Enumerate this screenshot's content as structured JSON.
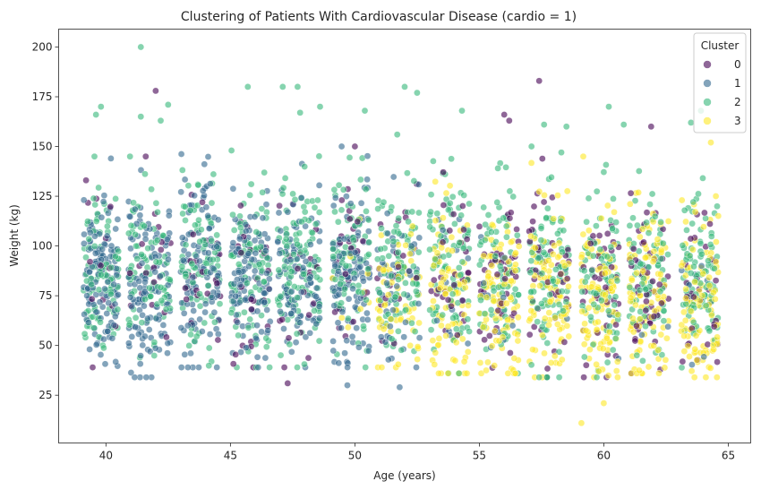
{
  "chart_data": {
    "type": "scatter",
    "title": "Clustering of Patients With Cardiovascular Disease (cardio = 1)",
    "xlabel": "Age (years)",
    "ylabel": "Weight (kg)",
    "xlim": [
      38.1,
      65.9
    ],
    "ylim": [
      1,
      209
    ],
    "x_ticks": [
      40,
      45,
      50,
      55,
      60,
      65
    ],
    "y_ticks": [
      25,
      50,
      75,
      100,
      125,
      150,
      175,
      200
    ],
    "grid": false,
    "legend": {
      "title": "Cluster",
      "placement": "top-right",
      "entries": [
        {
          "label": "0",
          "color": "#440154"
        },
        {
          "label": "1",
          "color": "#31688e"
        },
        {
          "label": "2",
          "color": "#35b779"
        },
        {
          "label": "3",
          "color": "#fde725"
        }
      ]
    },
    "point_opacity": 0.6,
    "bands": [
      {
        "x_range": [
          39.1,
          40.5
        ],
        "y_range": [
          45,
          135
        ],
        "mix": [
          0.05,
          0.55,
          0.4,
          0.0
        ]
      },
      {
        "x_range": [
          40.9,
          42.6
        ],
        "y_range": [
          40,
          135
        ],
        "mix": [
          0.08,
          0.55,
          0.37,
          0.0
        ]
      },
      {
        "x_range": [
          43.0,
          44.6
        ],
        "y_range": [
          45,
          140
        ],
        "mix": [
          0.1,
          0.5,
          0.4,
          0.0
        ]
      },
      {
        "x_range": [
          45.0,
          46.6
        ],
        "y_range": [
          45,
          138
        ],
        "mix": [
          0.1,
          0.45,
          0.45,
          0.0
        ]
      },
      {
        "x_range": [
          46.9,
          48.6
        ],
        "y_range": [
          45,
          138
        ],
        "mix": [
          0.12,
          0.45,
          0.43,
          0.0
        ]
      },
      {
        "x_range": [
          49.1,
          50.6
        ],
        "y_range": [
          45,
          140
        ],
        "mix": [
          0.12,
          0.5,
          0.35,
          0.03
        ]
      },
      {
        "x_range": [
          50.9,
          52.6
        ],
        "y_range": [
          45,
          135
        ],
        "mix": [
          0.12,
          0.2,
          0.4,
          0.28
        ]
      },
      {
        "x_range": [
          53.0,
          54.6
        ],
        "y_range": [
          42,
          140
        ],
        "mix": [
          0.15,
          0.05,
          0.4,
          0.4
        ]
      },
      {
        "x_range": [
          55.0,
          56.6
        ],
        "y_range": [
          42,
          140
        ],
        "mix": [
          0.15,
          0.03,
          0.4,
          0.42
        ]
      },
      {
        "x_range": [
          57.0,
          58.6
        ],
        "y_range": [
          40,
          140
        ],
        "mix": [
          0.18,
          0.02,
          0.38,
          0.42
        ]
      },
      {
        "x_range": [
          59.1,
          60.6
        ],
        "y_range": [
          40,
          135
        ],
        "mix": [
          0.18,
          0.02,
          0.38,
          0.42
        ]
      },
      {
        "x_range": [
          61.0,
          62.6
        ],
        "y_range": [
          42,
          135
        ],
        "mix": [
          0.18,
          0.02,
          0.38,
          0.42
        ]
      },
      {
        "x_range": [
          63.1,
          64.6
        ],
        "y_range": [
          40,
          135
        ],
        "mix": [
          0.18,
          0.02,
          0.38,
          0.42
        ]
      }
    ],
    "outliers": [
      {
        "x": 41.4,
        "y": 200,
        "cluster": 2
      },
      {
        "x": 42.0,
        "y": 178,
        "cluster": 0
      },
      {
        "x": 41.4,
        "y": 165,
        "cluster": 2
      },
      {
        "x": 42.5,
        "y": 171,
        "cluster": 2
      },
      {
        "x": 42.2,
        "y": 163,
        "cluster": 2
      },
      {
        "x": 39.6,
        "y": 166,
        "cluster": 2
      },
      {
        "x": 39.8,
        "y": 170,
        "cluster": 2
      },
      {
        "x": 41.6,
        "y": 145,
        "cluster": 0
      },
      {
        "x": 40.2,
        "y": 144,
        "cluster": 1
      },
      {
        "x": 39.2,
        "y": 133,
        "cluster": 0
      },
      {
        "x": 45.7,
        "y": 180,
        "cluster": 2
      },
      {
        "x": 47.1,
        "y": 180,
        "cluster": 2
      },
      {
        "x": 47.7,
        "y": 180,
        "cluster": 2
      },
      {
        "x": 47.8,
        "y": 167,
        "cluster": 2
      },
      {
        "x": 48.6,
        "y": 170,
        "cluster": 2
      },
      {
        "x": 50.4,
        "y": 168,
        "cluster": 2
      },
      {
        "x": 50.0,
        "y": 150,
        "cluster": 0
      },
      {
        "x": 52.0,
        "y": 180,
        "cluster": 2
      },
      {
        "x": 52.5,
        "y": 177,
        "cluster": 2
      },
      {
        "x": 51.7,
        "y": 156,
        "cluster": 2
      },
      {
        "x": 54.3,
        "y": 168,
        "cluster": 2
      },
      {
        "x": 57.4,
        "y": 183,
        "cluster": 0
      },
      {
        "x": 56.0,
        "y": 166,
        "cluster": 0
      },
      {
        "x": 56.2,
        "y": 163,
        "cluster": 0
      },
      {
        "x": 57.6,
        "y": 161,
        "cluster": 2
      },
      {
        "x": 58.5,
        "y": 160,
        "cluster": 2
      },
      {
        "x": 60.2,
        "y": 170,
        "cluster": 2
      },
      {
        "x": 60.8,
        "y": 161,
        "cluster": 2
      },
      {
        "x": 61.9,
        "y": 160,
        "cluster": 0
      },
      {
        "x": 63.5,
        "y": 162,
        "cluster": 2
      },
      {
        "x": 63.9,
        "y": 168,
        "cluster": 2
      },
      {
        "x": 64.3,
        "y": 152,
        "cluster": 3
      },
      {
        "x": 47.3,
        "y": 31,
        "cluster": 0
      },
      {
        "x": 49.7,
        "y": 30,
        "cluster": 1
      },
      {
        "x": 51.8,
        "y": 29,
        "cluster": 1
      },
      {
        "x": 59.1,
        "y": 11,
        "cluster": 3
      },
      {
        "x": 60.0,
        "y": 21,
        "cluster": 3
      },
      {
        "x": 59.8,
        "y": 37,
        "cluster": 3
      },
      {
        "x": 64.1,
        "y": 34,
        "cluster": 3
      },
      {
        "x": 57.4,
        "y": 34,
        "cluster": 2
      }
    ]
  }
}
